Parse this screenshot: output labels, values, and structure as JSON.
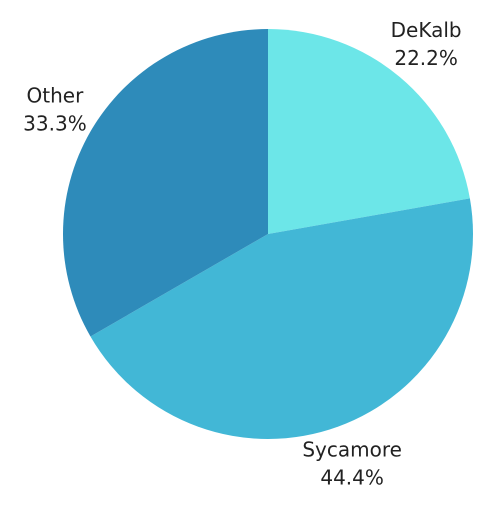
{
  "chart_data": {
    "type": "pie",
    "categories": [
      "DeKalb",
      "Sycamore",
      "Other"
    ],
    "values": [
      22.2,
      44.4,
      33.3
    ],
    "value_labels": [
      "22.2%",
      "44.4%",
      "33.3%"
    ],
    "colors": [
      "#6ce6e8",
      "#42b7d6",
      "#2e8bba"
    ]
  }
}
